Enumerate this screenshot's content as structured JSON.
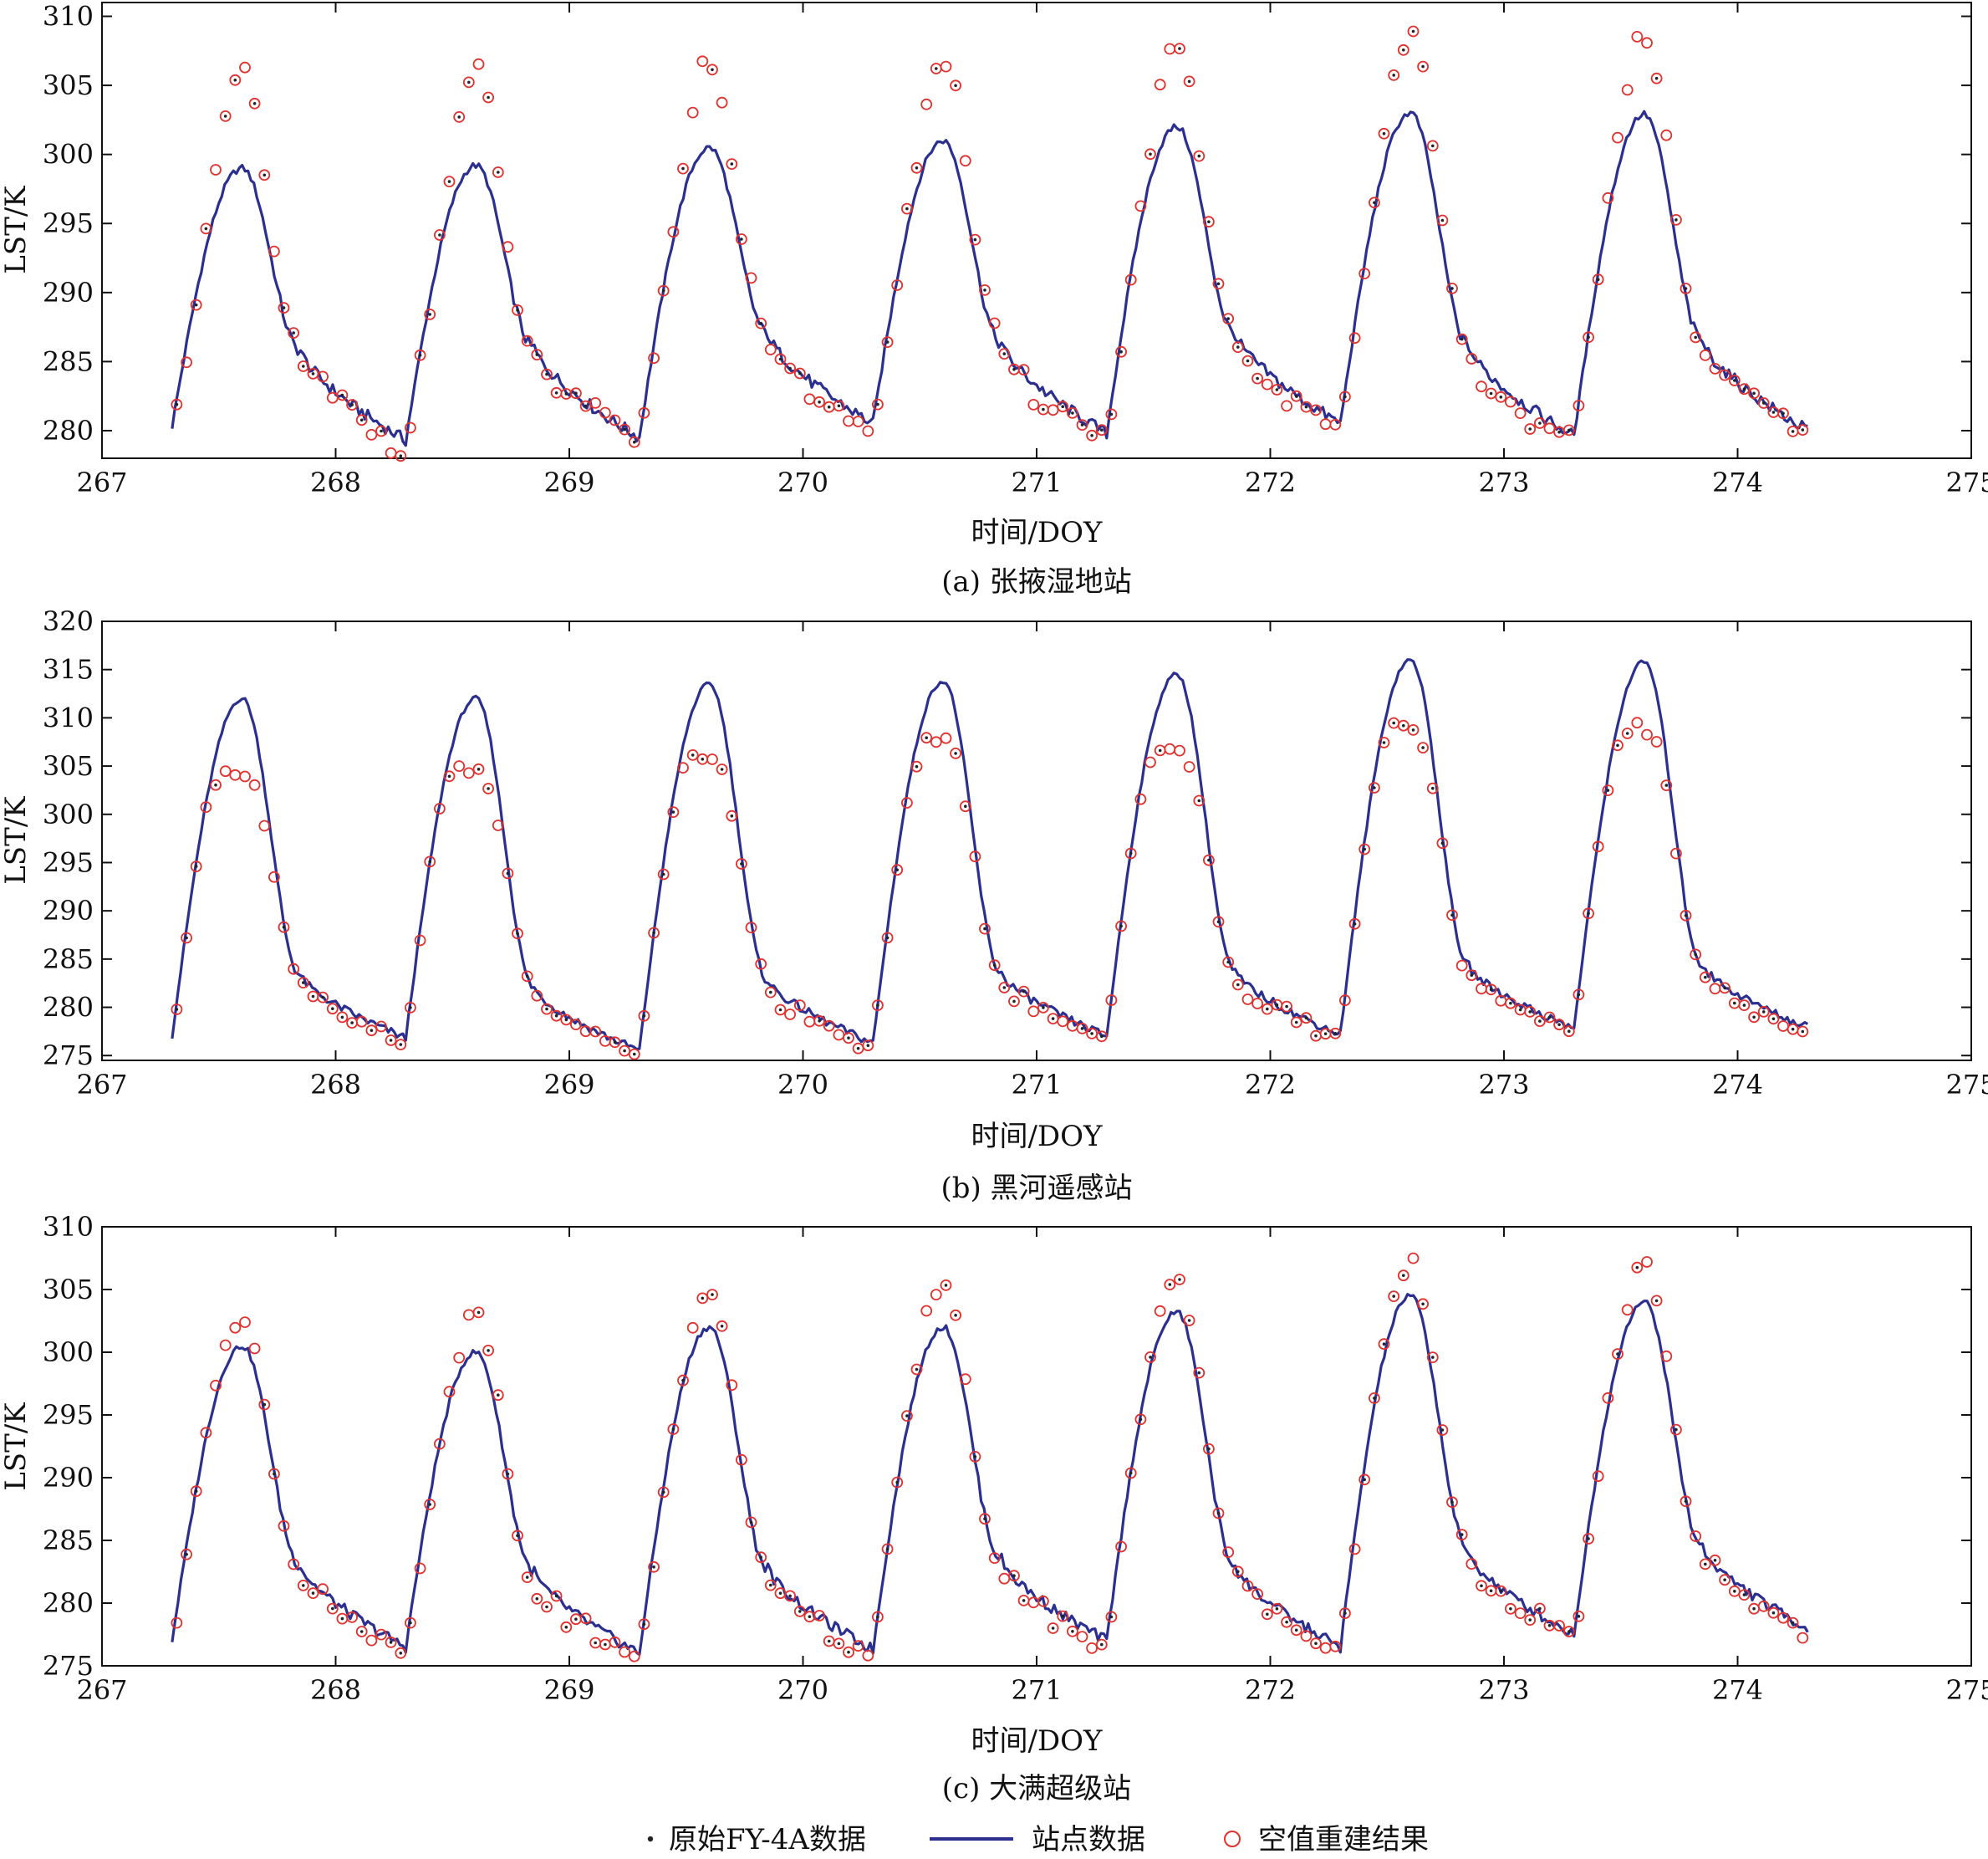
{
  "figure": {
    "legend": {
      "raw_label": "原始FY-4A数据",
      "station_label": "站点数据",
      "recon_label": "空值重建结果"
    },
    "colors": {
      "station": "#2b2f8f",
      "recon": "#e0322e",
      "raw": "#222222",
      "axis": "#111111"
    }
  },
  "chart_data": [
    {
      "type": "line",
      "caption": "(a) 张掖湿地站",
      "xlabel": "时间/DOY",
      "ylabel": "LST/K",
      "xlim": [
        267,
        275
      ],
      "ylim": [
        278,
        311
      ],
      "xticks": [
        267,
        268,
        269,
        270,
        271,
        272,
        273,
        274,
        275
      ],
      "yticks": [
        280,
        285,
        290,
        295,
        300,
        305,
        310
      ],
      "grid": false,
      "legend": "bottom-center",
      "station": {
        "name": "站点数据",
        "t0": 267.3,
        "tmin": [
          280.3,
          279.3,
          279.5,
          280.5,
          279.8,
          280.5,
          279.6,
          280.0
        ],
        "tmax": [
          299.0,
          299.2,
          300.5,
          301.0,
          302.0,
          303.0,
          302.9
        ]
      },
      "reconstruction": {
        "name": "空值重建结果",
        "peaks": [
          306.0,
          306.2,
          307.0,
          307.2,
          308.0,
          309.0,
          309.0
        ]
      }
    },
    {
      "type": "line",
      "caption": "(b) 黑河遥感站",
      "xlabel": "时间/DOY",
      "ylabel": "LST/K",
      "xlim": [
        267,
        275
      ],
      "ylim": [
        274.5,
        320
      ],
      "xticks": [
        267,
        268,
        269,
        270,
        271,
        272,
        273,
        274,
        275
      ],
      "yticks": [
        275,
        280,
        285,
        290,
        295,
        300,
        305,
        310,
        315,
        320
      ],
      "grid": false,
      "legend": "bottom-center",
      "station": {
        "name": "站点数据",
        "t0": 267.3,
        "tmin": [
          277.0,
          276.8,
          275.5,
          276.3,
          277.0,
          277.2,
          277.8,
          277.9
        ],
        "tmax": [
          312.0,
          312.0,
          313.5,
          313.8,
          314.5,
          316.0,
          315.8
        ]
      },
      "reconstruction": {
        "name": "空值重建结果",
        "peaks": [
          304.5,
          305.0,
          306.0,
          307.5,
          307.2,
          309.0,
          309.0
        ]
      }
    },
    {
      "type": "line",
      "caption": "(c) 大满超级站",
      "xlabel": "时间/DOY",
      "ylabel": "LST/K",
      "xlim": [
        267,
        275
      ],
      "ylim": [
        275,
        310
      ],
      "xticks": [
        267,
        268,
        269,
        270,
        271,
        272,
        273,
        274,
        275
      ],
      "yticks": [
        275,
        280,
        285,
        290,
        295,
        300,
        305,
        310
      ],
      "grid": false,
      "legend": "bottom-center",
      "station": {
        "name": "站点数据",
        "t0": 267.3,
        "tmin": [
          277.0,
          276.5,
          276.0,
          276.3,
          277.0,
          276.5,
          277.5,
          278.0
        ],
        "tmax": [
          300.5,
          300.0,
          302.0,
          302.0,
          303.2,
          304.5,
          304.0
        ]
      },
      "reconstruction": {
        "name": "空值重建结果",
        "peaks": [
          303.0,
          303.2,
          304.2,
          306.0,
          305.8,
          307.0,
          307.0
        ]
      }
    }
  ]
}
